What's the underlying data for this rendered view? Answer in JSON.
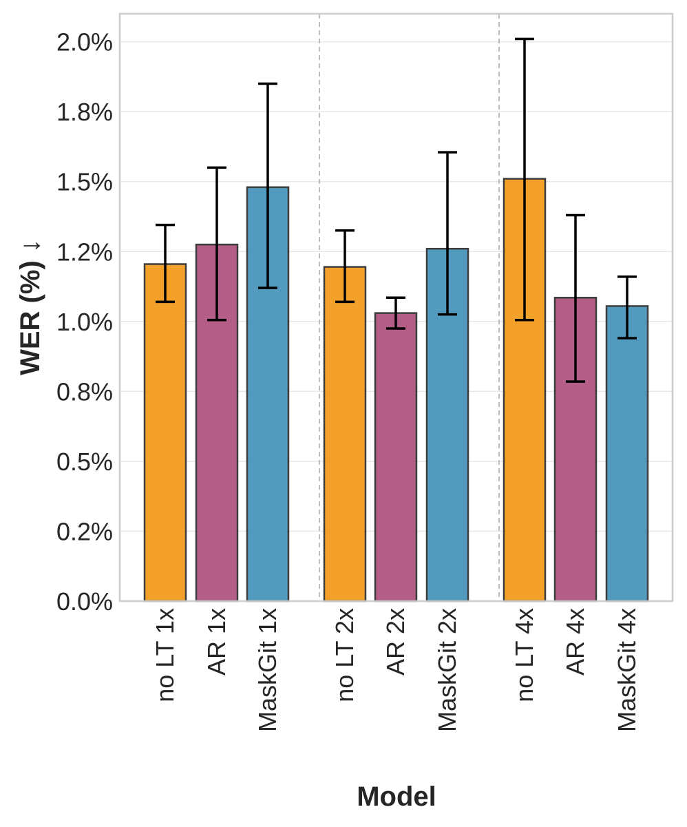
{
  "chart_data": {
    "type": "bar",
    "xlabel": "Model",
    "ylabel": "WER (%) ↓",
    "ylim": [
      0.0,
      0.021
    ],
    "yticks": [
      0.0,
      0.0025,
      0.005,
      0.0075,
      0.01,
      0.0125,
      0.015,
      0.0175,
      0.02
    ],
    "ytick_labels": [
      "0.0%",
      "0.2%",
      "0.5%",
      "0.8%",
      "1.0%",
      "1.2%",
      "1.5%",
      "1.8%",
      "2.0%"
    ],
    "grid": true,
    "group_separators_after": [
      2,
      5
    ],
    "categories": [
      "no LT 1x",
      "AR 1x",
      "MaskGit 1x",
      "no LT 2x",
      "AR 2x",
      "MaskGit 2x",
      "no LT 4x",
      "AR 4x",
      "MaskGit 4x"
    ],
    "values": [
      0.01205,
      0.01275,
      0.0148,
      0.01195,
      0.0103,
      0.0126,
      0.0151,
      0.01085,
      0.01055
    ],
    "error_low": [
      0.0107,
      0.01005,
      0.0112,
      0.0107,
      0.00975,
      0.01025,
      0.01005,
      0.00785,
      0.0094
    ],
    "error_high": [
      0.01345,
      0.0155,
      0.0185,
      0.01325,
      0.01085,
      0.01605,
      0.0201,
      0.0138,
      0.0116
    ],
    "bar_colors": [
      "#f39c1f",
      "#b05580",
      "#4a96bb",
      "#f39c1f",
      "#b05580",
      "#4a96bb",
      "#f39c1f",
      "#b05580",
      "#4a96bb"
    ]
  }
}
